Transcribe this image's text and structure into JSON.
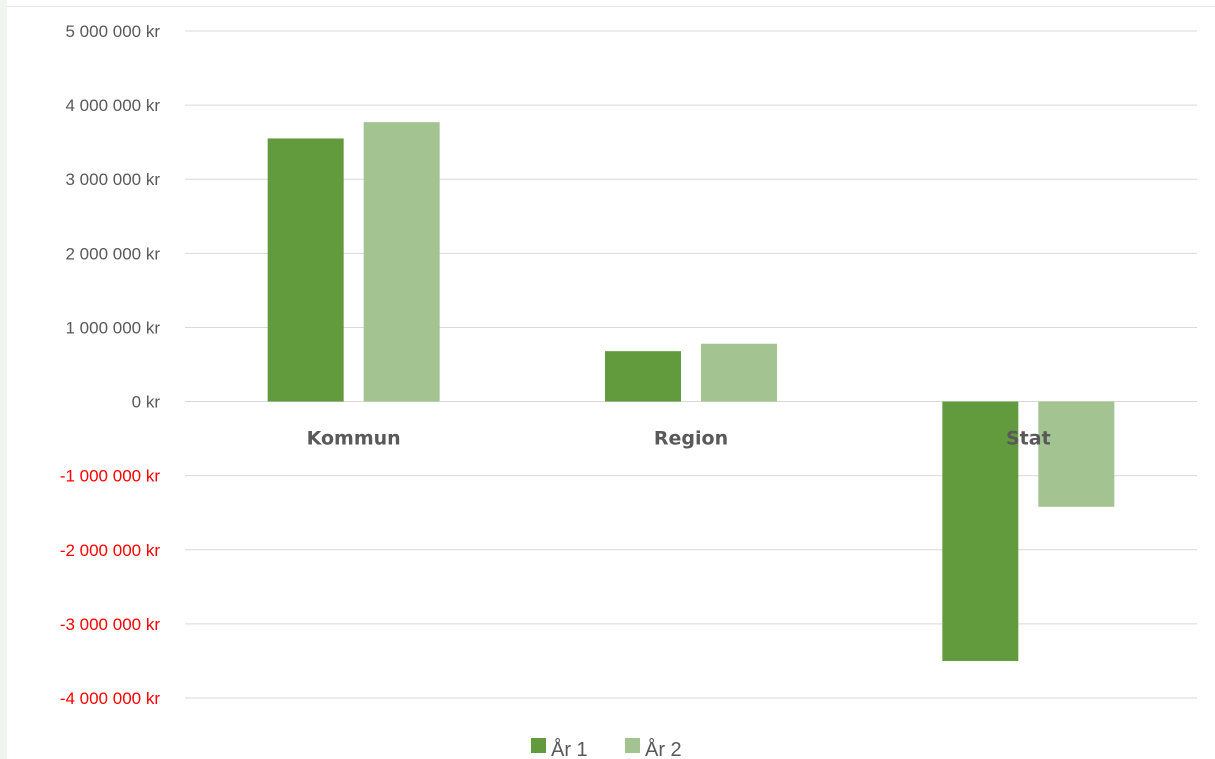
{
  "chart_data": {
    "type": "bar",
    "categories": [
      "Kommun",
      "Region",
      "Stat"
    ],
    "series": [
      {
        "name": "År 1",
        "values": [
          3550000,
          680000,
          -3500000
        ],
        "color": "#629a3e"
      },
      {
        "name": "År 2",
        "values": [
          3770000,
          780000,
          -1420000
        ],
        "color": "#a3c490"
      }
    ],
    "y_ticks": [
      {
        "value": 5000000,
        "label": "5 000 000 kr",
        "negative": false
      },
      {
        "value": 4000000,
        "label": "4 000 000 kr",
        "negative": false
      },
      {
        "value": 3000000,
        "label": "3 000 000 kr",
        "negative": false
      },
      {
        "value": 2000000,
        "label": "2 000 000 kr",
        "negative": false
      },
      {
        "value": 1000000,
        "label": "1 000 000 kr",
        "negative": false
      },
      {
        "value": 0,
        "label": "0 kr",
        "negative": false
      },
      {
        "value": -1000000,
        "label": "-1 000 000 kr",
        "negative": true
      },
      {
        "value": -2000000,
        "label": "-2 000 000 kr",
        "negative": true
      },
      {
        "value": -3000000,
        "label": "-3 000 000 kr",
        "negative": true
      },
      {
        "value": -4000000,
        "label": "-4 000 000 kr",
        "negative": true
      }
    ],
    "ylim": [
      -4000000,
      5000000
    ],
    "grid": true,
    "legend_position": "bottom",
    "title": "",
    "xlabel": "",
    "ylabel": "",
    "colors": {
      "gridline": "#d9d9d9",
      "tick_text": "#595959",
      "negative_tick_text": "#ff0000"
    }
  }
}
